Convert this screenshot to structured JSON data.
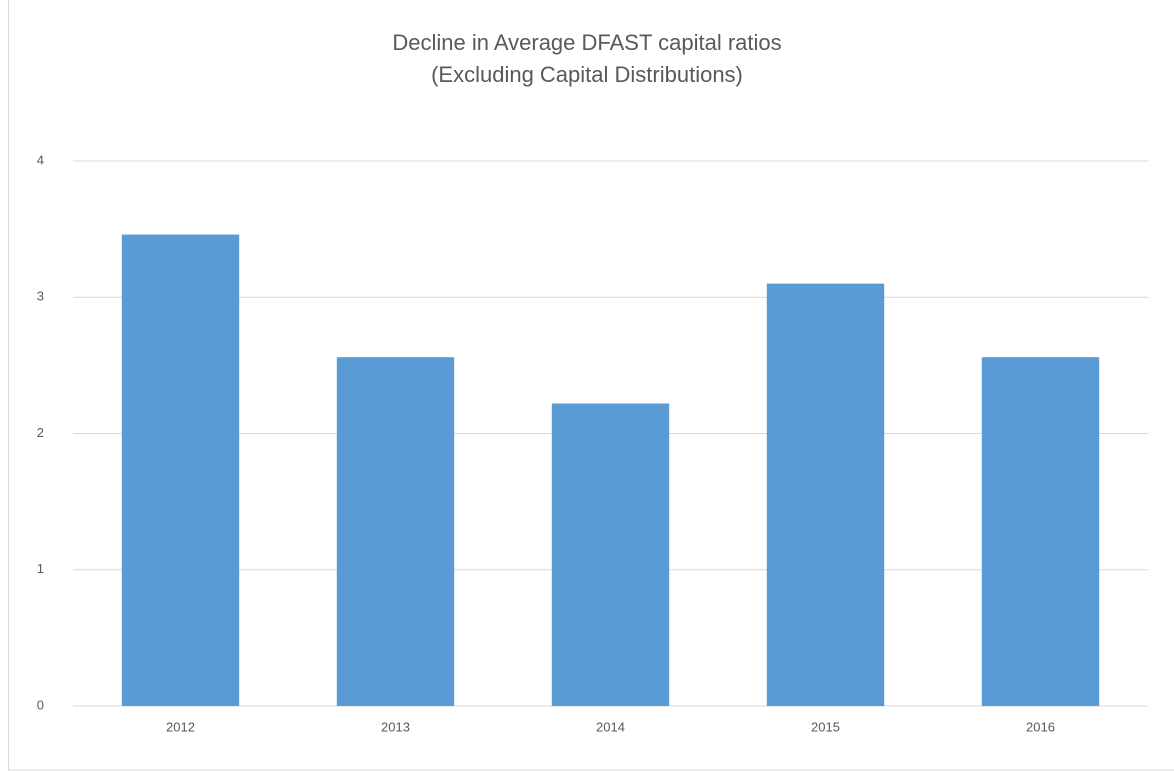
{
  "chart_data": {
    "type": "bar",
    "title": "Decline in Average DFAST capital ratios",
    "subtitle": "(Excluding Capital Distributions)",
    "categories": [
      "2012",
      "2013",
      "2014",
      "2015",
      "2016"
    ],
    "values": [
      3.46,
      2.56,
      2.22,
      3.1,
      2.56
    ],
    "color": "#5b9bd5",
    "ylim": [
      0,
      4
    ],
    "yticks": [
      0,
      1,
      2,
      3,
      4
    ],
    "grid": true
  }
}
